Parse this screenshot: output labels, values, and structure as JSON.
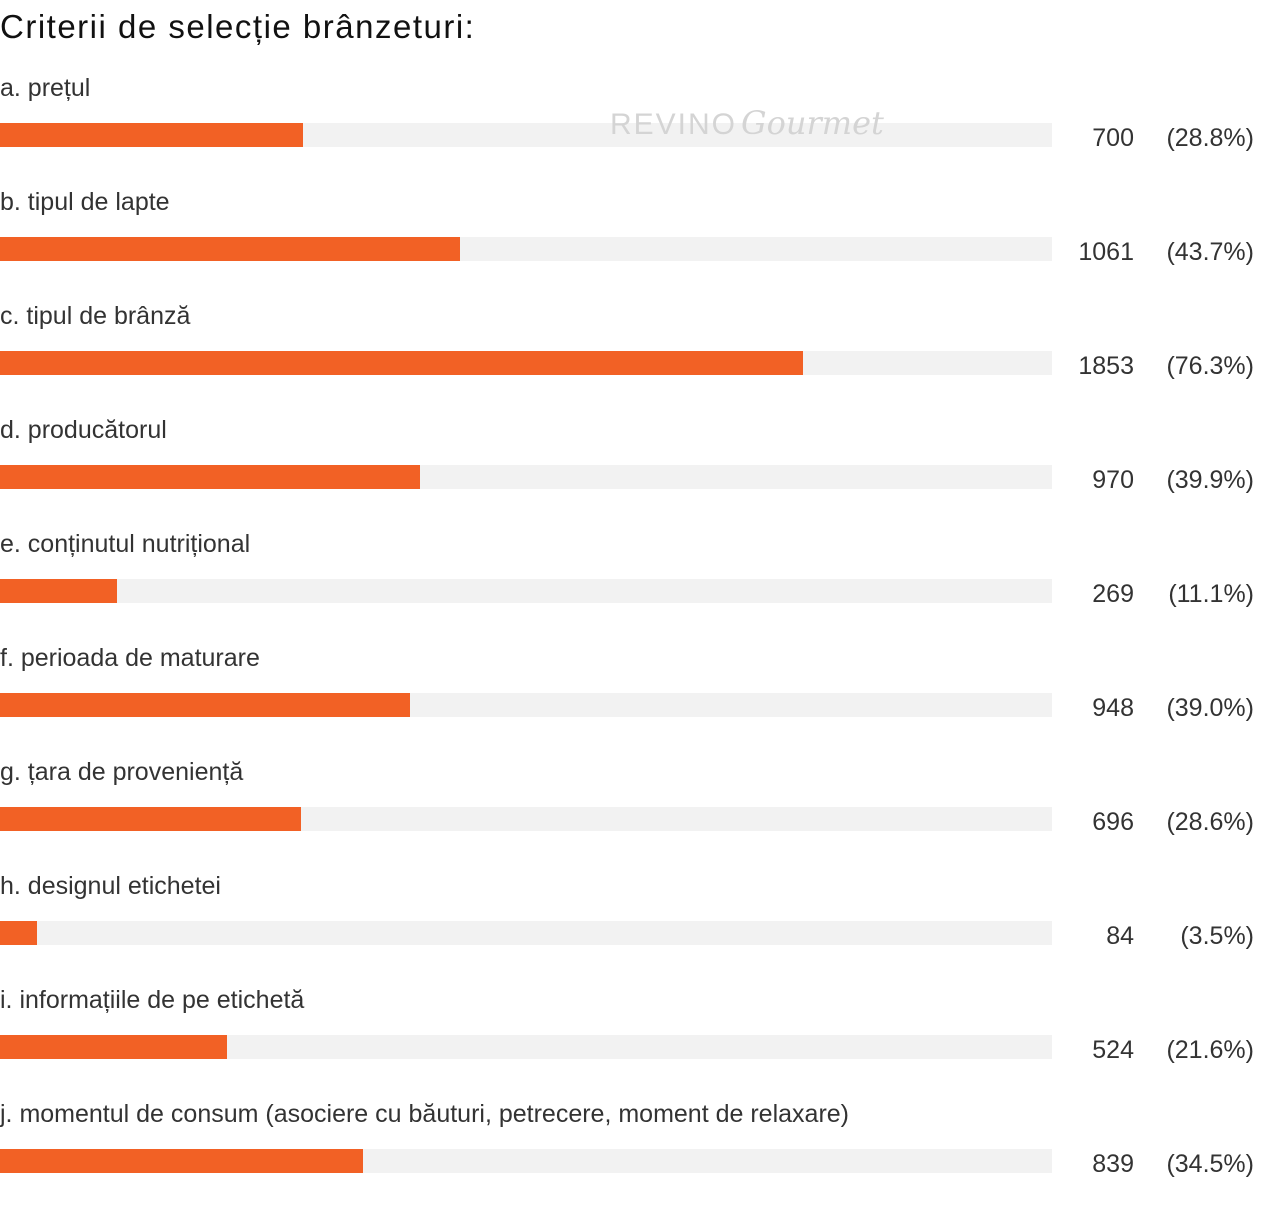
{
  "chart_data": {
    "type": "bar",
    "orientation": "horizontal",
    "title": "Criterii de selecție brânzeturi:",
    "xlim": [
      0,
      100
    ],
    "grid": false,
    "colors": {
      "bar": "#f26125",
      "track": "#f2f2f2"
    },
    "categories": [
      "a. prețul",
      "b. tipul de lapte",
      "c. tipul de brânză",
      "d. producătorul",
      "e. conținutul nutrițional",
      "f. perioada de maturare",
      "g. țara de proveniență",
      "h. designul etichetei",
      "i. informațiile de pe etichetă",
      "j. momentul de consum (asociere cu băuturi, petrecere, moment de relaxare)"
    ],
    "values": [
      700,
      1061,
      1853,
      970,
      269,
      948,
      696,
      84,
      524,
      839
    ],
    "percents": [
      28.8,
      43.7,
      76.3,
      39.9,
      11.1,
      39.0,
      28.6,
      3.5,
      21.6,
      34.5
    ],
    "percent_labels": [
      "(28.8%)",
      "(43.7%)",
      "(76.3%)",
      "(39.9%)",
      "(11.1%)",
      "(39.0%)",
      "(28.6%)",
      "(3.5%)",
      "(21.6%)",
      "(34.5%)"
    ]
  },
  "watermark": {
    "brand": "REVINO",
    "script": "Gourmet"
  }
}
